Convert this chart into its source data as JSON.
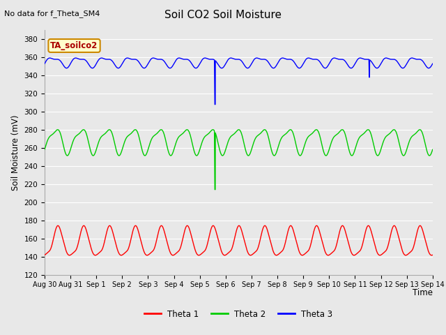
{
  "title": "Soil CO2 Soil Moisture",
  "no_data_text": "No data for f_Theta_SM4",
  "ylabel": "Soil Moisture (mV)",
  "xlabel": "Time",
  "legend_label": "TA_soilco2",
  "ylim": [
    120,
    390
  ],
  "yticks": [
    120,
    140,
    160,
    180,
    200,
    220,
    240,
    260,
    280,
    300,
    320,
    340,
    360,
    380
  ],
  "xlim_start": 0,
  "xlim_end": 15,
  "xtick_labels": [
    "Aug 30",
    "Aug 31",
    "Sep 1",
    "Sep 2",
    "Sep 3",
    "Sep 4",
    "Sep 5",
    "Sep 6",
    "Sep 7",
    "Sep 8",
    "Sep 9",
    "Sep 10",
    "Sep 11",
    "Sep 12",
    "Sep 13",
    "Sep 14"
  ],
  "bg_color": "#e8e8e8",
  "plot_bg_color": "#e8e8e8",
  "grid_color": "#ffffff",
  "legend_entries": [
    "Theta 1",
    "Theta 2",
    "Theta 3"
  ],
  "legend_colors": [
    "#ff0000",
    "#00cc00",
    "#0000ff"
  ],
  "theta1_base": 153,
  "theta1_amp": 13,
  "theta2_base": 268,
  "theta2_amp": 13,
  "theta3_base": 355,
  "theta3_amp": 5,
  "spike2_day": 6.58,
  "spike2_val": 214,
  "spike3_day": 6.58,
  "spike3_val": 308,
  "spike3b_day": 12.55,
  "spike3b_val": 338,
  "total_days": 15,
  "n_pts": 3600
}
